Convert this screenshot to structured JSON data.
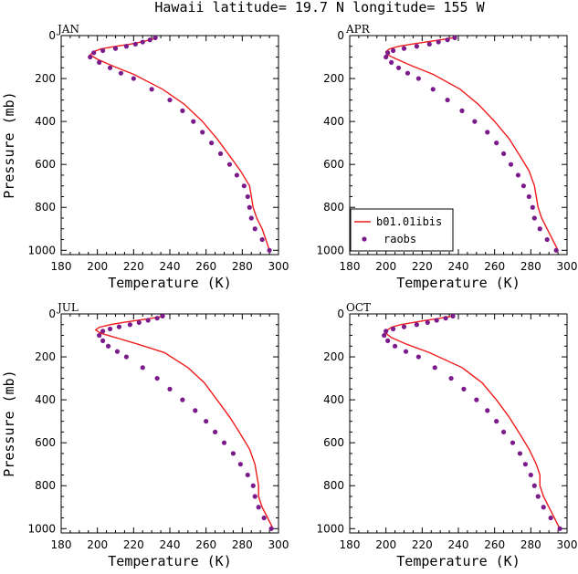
{
  "title": "Hawaii  latitude= 19.7 N longitude= 155 W",
  "chart_data": [
    {
      "type": "line+scatter",
      "panel": "JAN",
      "xlabel": "Temperature (K)",
      "ylabel": "Pressure (mb)",
      "xlim": [
        180,
        300
      ],
      "ylim": [
        1020,
        0
      ],
      "xticks": [
        "180",
        "200",
        "220",
        "240",
        "260",
        "280",
        "300"
      ],
      "yticks": [
        "0",
        "200",
        "400",
        "600",
        "800",
        "1000"
      ],
      "series": [
        {
          "name": "b01.01ibis",
          "kind": "line",
          "x": [
            233,
            229,
            224,
            218,
            210,
            202,
            198,
            196,
            200,
            208,
            220,
            236,
            248,
            258,
            266,
            273,
            279,
            284,
            285,
            286,
            288,
            291,
            293,
            295
          ],
          "y": [
            10,
            20,
            30,
            40,
            50,
            62,
            75,
            90,
            110,
            140,
            180,
            250,
            320,
            400,
            480,
            560,
            630,
            700,
            750,
            800,
            850,
            900,
            950,
            1000
          ]
        },
        {
          "name": "raobs",
          "kind": "scatter",
          "x": [
            232,
            229,
            225,
            221,
            216,
            210,
            203,
            198,
            196,
            201,
            207,
            213,
            220,
            230,
            240,
            247,
            253,
            258,
            263,
            268,
            273,
            277,
            281,
            283,
            284,
            285,
            287,
            291,
            295
          ],
          "y": [
            10,
            20,
            30,
            40,
            50,
            60,
            70,
            80,
            100,
            125,
            150,
            175,
            200,
            250,
            300,
            350,
            400,
            450,
            500,
            550,
            600,
            650,
            700,
            750,
            800,
            850,
            900,
            950,
            1000
          ]
        }
      ]
    },
    {
      "type": "line+scatter",
      "panel": "APR",
      "xlabel": "Temperature (K)",
      "ylabel": "",
      "xlim": [
        180,
        300
      ],
      "ylim": [
        1020,
        0
      ],
      "xticks": [
        "180",
        "200",
        "220",
        "240",
        "260",
        "280",
        "300"
      ],
      "yticks": [
        "0",
        "200",
        "400",
        "600",
        "800",
        "1000"
      ],
      "series": [
        {
          "name": "b01.01ibis",
          "kind": "line",
          "x": [
            237,
            230,
            222,
            214,
            207,
            202,
            200,
            201,
            206,
            214,
            226,
            241,
            251,
            260,
            268,
            274,
            279,
            282,
            283,
            284,
            286,
            289,
            292,
            295
          ],
          "y": [
            10,
            20,
            30,
            40,
            50,
            62,
            75,
            90,
            110,
            140,
            180,
            250,
            320,
            400,
            480,
            560,
            630,
            700,
            750,
            800,
            850,
            900,
            950,
            1000
          ]
        },
        {
          "name": "raobs",
          "kind": "scatter",
          "x": [
            238,
            234,
            229,
            224,
            217,
            210,
            204,
            201,
            200,
            203,
            207,
            212,
            218,
            226,
            234,
            242,
            249,
            256,
            261,
            265,
            269,
            273,
            276,
            279,
            281,
            282,
            285,
            289,
            294
          ],
          "y": [
            10,
            20,
            30,
            40,
            50,
            60,
            70,
            80,
            100,
            125,
            150,
            175,
            200,
            250,
            300,
            350,
            400,
            450,
            500,
            550,
            600,
            650,
            700,
            750,
            800,
            850,
            900,
            950,
            1000
          ]
        }
      ]
    },
    {
      "type": "line+scatter",
      "panel": "JUL",
      "xlabel": "Temperature (K)",
      "ylabel": "Pressure (mb)",
      "xlim": [
        180,
        300
      ],
      "ylim": [
        1020,
        0
      ],
      "xticks": [
        "180",
        "200",
        "220",
        "240",
        "260",
        "280",
        "300"
      ],
      "yticks": [
        "0",
        "200",
        "400",
        "600",
        "800",
        "1000"
      ],
      "series": [
        {
          "name": "b01.01ibis",
          "kind": "line",
          "x": [
            237,
            230,
            222,
            214,
            207,
            201,
            199,
            202,
            210,
            222,
            237,
            250,
            259,
            266,
            273,
            279,
            284,
            287,
            288,
            289,
            289,
            291,
            294,
            297
          ],
          "y": [
            10,
            20,
            30,
            40,
            50,
            62,
            75,
            90,
            110,
            140,
            180,
            250,
            320,
            400,
            480,
            560,
            630,
            700,
            750,
            800,
            850,
            900,
            950,
            1000
          ]
        },
        {
          "name": "raobs",
          "kind": "scatter",
          "x": [
            236,
            233,
            228,
            223,
            218,
            212,
            207,
            203,
            201,
            203,
            206,
            211,
            216,
            225,
            233,
            240,
            247,
            254,
            260,
            265,
            270,
            275,
            279,
            283,
            286,
            287,
            289,
            292,
            296
          ],
          "y": [
            10,
            20,
            30,
            40,
            50,
            60,
            70,
            80,
            100,
            125,
            150,
            175,
            200,
            250,
            300,
            350,
            400,
            450,
            500,
            550,
            600,
            650,
            700,
            750,
            800,
            850,
            900,
            950,
            1000
          ]
        }
      ]
    },
    {
      "type": "line+scatter",
      "panel": "OCT",
      "xlabel": "Temperature (K)",
      "ylabel": "",
      "xlim": [
        180,
        300
      ],
      "ylim": [
        1020,
        0
      ],
      "xticks": [
        "180",
        "200",
        "220",
        "240",
        "260",
        "280",
        "300"
      ],
      "yticks": [
        "0",
        "200",
        "400",
        "600",
        "800",
        "1000"
      ],
      "series": [
        {
          "name": "b01.01ibis",
          "kind": "line",
          "x": [
            237,
            230,
            222,
            215,
            208,
            203,
            201,
            200,
            203,
            211,
            224,
            242,
            253,
            261,
            268,
            274,
            279,
            283,
            285,
            285,
            287,
            290,
            293,
            296
          ],
          "y": [
            10,
            20,
            30,
            40,
            50,
            62,
            75,
            90,
            110,
            140,
            180,
            250,
            320,
            400,
            480,
            560,
            630,
            700,
            750,
            800,
            850,
            900,
            950,
            1000
          ]
        },
        {
          "name": "raobs",
          "kind": "scatter",
          "x": [
            237,
            233,
            228,
            223,
            217,
            210,
            204,
            200,
            199,
            201,
            205,
            211,
            218,
            227,
            236,
            243,
            250,
            256,
            261,
            265,
            270,
            274,
            277,
            280,
            282,
            284,
            287,
            291,
            296
          ],
          "y": [
            10,
            20,
            30,
            40,
            50,
            60,
            70,
            80,
            100,
            125,
            150,
            175,
            200,
            250,
            300,
            350,
            400,
            450,
            500,
            550,
            600,
            650,
            700,
            750,
            800,
            850,
            900,
            950,
            1000
          ]
        }
      ]
    }
  ],
  "legend": {
    "line_label": "b01.01ibis",
    "marker_label": "raobs",
    "position": "bottom-left of APR panel"
  },
  "colors": {
    "model_line": "#ee1c1c",
    "observations": "#7b1a8a"
  }
}
